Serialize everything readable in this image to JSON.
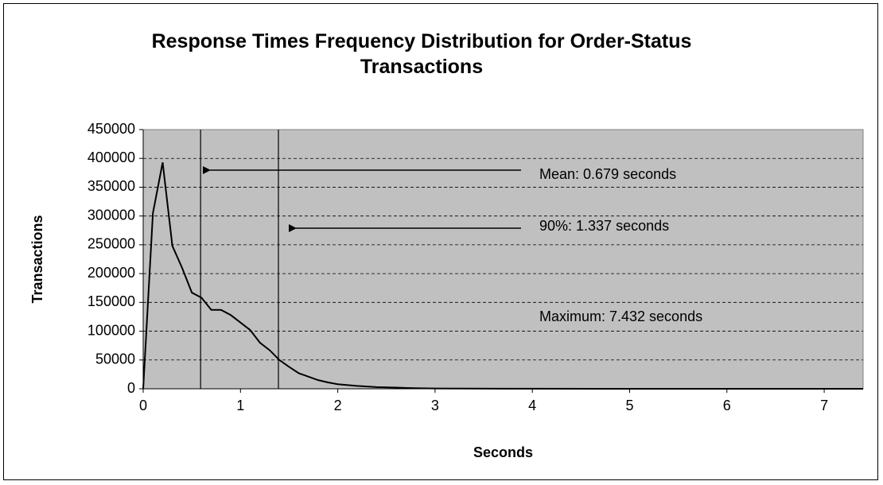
{
  "chart_data": {
    "type": "line",
    "title": "Response Times Frequency Distribution for Order-Status Transactions",
    "x_label": "Seconds",
    "y_label": "Transactions",
    "x": [
      0,
      0.1,
      0.2,
      0.3,
      0.4,
      0.5,
      0.6,
      0.7,
      0.8,
      0.9,
      1.0,
      1.1,
      1.2,
      1.3,
      1.4,
      1.5,
      1.6,
      1.7,
      1.8,
      1.9,
      2.0,
      2.2,
      2.4,
      2.6,
      2.8,
      3.0,
      4.0,
      5.0,
      6.0,
      7.4
    ],
    "series": [
      {
        "name": "Transactions",
        "color": "#000000",
        "values": [
          0,
          305000,
          393000,
          248000,
          210000,
          167000,
          158000,
          137000,
          137000,
          128000,
          115000,
          102000,
          80000,
          67000,
          50000,
          38000,
          27000,
          21000,
          15000,
          11000,
          8000,
          5000,
          3000,
          2000,
          1000,
          500,
          100,
          0,
          0,
          0
        ]
      }
    ],
    "xlim": [
      0,
      7.4
    ],
    "xticks": [
      0,
      1,
      2,
      3,
      4,
      5,
      6,
      7
    ],
    "ylim": [
      0,
      450000
    ],
    "yticks": [
      0,
      50000,
      100000,
      150000,
      200000,
      250000,
      300000,
      350000,
      400000,
      450000
    ],
    "grid": true,
    "plot_background": "#c0c0c0",
    "vertical_lines": [
      0.59,
      1.39
    ],
    "annotations": [
      "Mean: 0.679 seconds",
      "90%: 1.337 seconds",
      "Maximum: 7.432 seconds"
    ]
  }
}
